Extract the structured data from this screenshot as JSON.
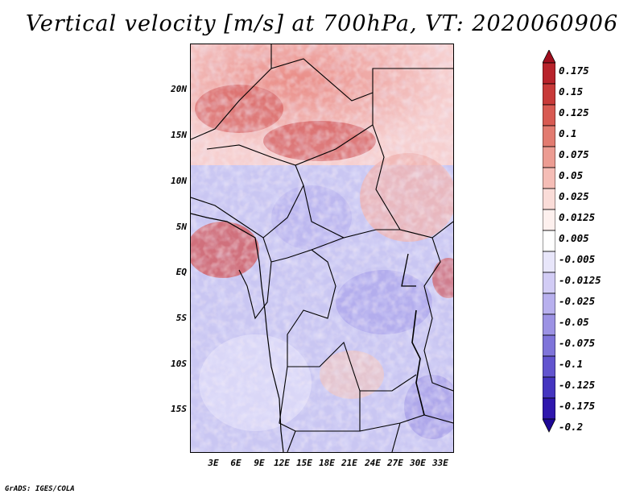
{
  "title": "Vertical velocity [m/s] at 700hPa, VT: 2020060906",
  "y_axis_labels": [
    "20N",
    "15N",
    "10N",
    "5N",
    "EQ",
    "5S",
    "10S",
    "15S"
  ],
  "x_axis_labels": [
    "3E",
    "6E",
    "9E",
    "12E",
    "15E",
    "18E",
    "21E",
    "24E",
    "27E",
    "30E",
    "33E"
  ],
  "colorbar": {
    "labels": [
      "0.175",
      "0.15",
      "0.125",
      "0.1",
      "0.075",
      "0.05",
      "0.025",
      "0.0125",
      "0.005",
      "-0.005",
      "-0.0125",
      "-0.025",
      "-0.05",
      "-0.075",
      "-0.1",
      "-0.125",
      "-0.175",
      "-0.2"
    ],
    "colors": [
      "#a00f1e",
      "#b8232b",
      "#c83a39",
      "#d85a52",
      "#e27b70",
      "#ec9c92",
      "#f5bdb6",
      "#fadcd8",
      "#fdf0ee",
      "#ffffff",
      "#e8e6fa",
      "#d2ccf5",
      "#b8b0ee",
      "#9c92e4",
      "#7f74da",
      "#6254cf",
      "#4535c0",
      "#2f17ad",
      "#1e0896"
    ]
  },
  "credit": "GrADS: IGES/COLA"
}
